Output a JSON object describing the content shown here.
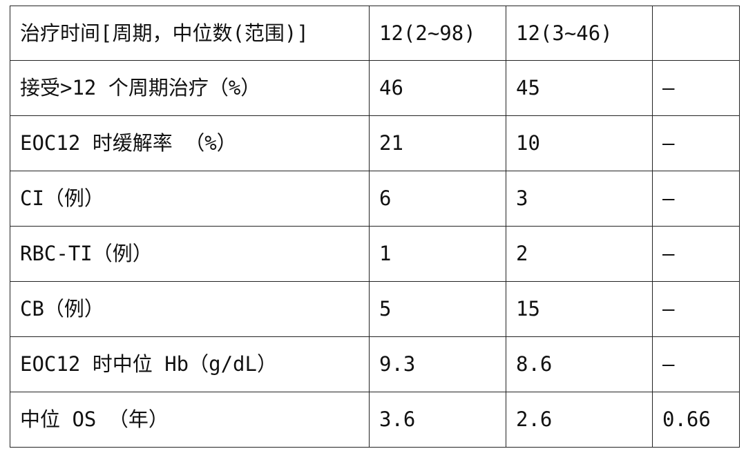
{
  "table": {
    "rows": [
      {
        "label": "治疗时间[周期，中位数(范围)]",
        "group_a": "12(2~98)",
        "group_b": "12(3~46)",
        "p": ""
      },
      {
        "label": "接受>12 个周期治疗（%）",
        "group_a": "46",
        "group_b": "45",
        "p": "–"
      },
      {
        "label": "EOC12 时缓解率 （%）",
        "group_a": "21",
        "group_b": "10",
        "p": "–"
      },
      {
        "label": "CI（例）",
        "group_a": "6",
        "group_b": "3",
        "p": "–"
      },
      {
        "label": "RBC-TI（例）",
        "group_a": "1",
        "group_b": "2",
        "p": "–"
      },
      {
        "label": "CB（例）",
        "group_a": "5",
        "group_b": "15",
        "p": "–"
      },
      {
        "label": "EOC12 时中位 Hb（g/dL）",
        "group_a": "9.3",
        "group_b": "8.6",
        "p": "–"
      },
      {
        "label": "中位 OS （年）",
        "group_a": "3.6",
        "group_b": "2.6",
        "p": "0.66"
      }
    ]
  }
}
